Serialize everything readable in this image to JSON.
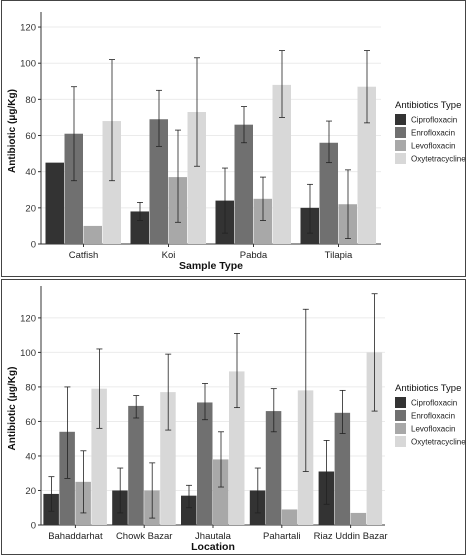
{
  "colors": {
    "Ciprofloxacin": "#333333",
    "Enrofloxacin": "#707070",
    "Levofloxacin": "#a8a8a8",
    "Oxytetracycline": "#d8d8d8",
    "grid": "#ebebeb",
    "errorbar": "#222222"
  },
  "chart_data": [
    {
      "type": "bar",
      "title": "",
      "xlabel": "Sample Type",
      "ylabel": "Antibiotic (μg/Kg)",
      "categories": [
        "Catfish",
        "Koi",
        "Pabda",
        "Tilapia"
      ],
      "ylim": [
        0,
        125
      ],
      "yticks": [
        0,
        20,
        40,
        60,
        80,
        100,
        120
      ],
      "grid": true,
      "legend": {
        "title": "Antibiotics Type",
        "position": "right"
      },
      "series": [
        {
          "name": "Ciprofloxacin",
          "values": [
            45,
            18,
            24,
            20
          ],
          "err_low": [
            null,
            13,
            6,
            6
          ],
          "err_high": [
            null,
            23,
            42,
            33
          ]
        },
        {
          "name": "Enrofloxacin",
          "values": [
            61,
            69,
            66,
            56
          ],
          "err_low": [
            35,
            54,
            56,
            45
          ],
          "err_high": [
            87,
            85,
            76,
            68
          ]
        },
        {
          "name": "Levofloxacin",
          "values": [
            10,
            37,
            25,
            22
          ],
          "err_low": [
            null,
            12,
            13,
            3
          ],
          "err_high": [
            null,
            63,
            37,
            41
          ]
        },
        {
          "name": "Oxytetracycline",
          "values": [
            68,
            73,
            88,
            87
          ],
          "err_low": [
            35,
            43,
            70,
            67
          ],
          "err_high": [
            102,
            103,
            107,
            107
          ]
        }
      ]
    },
    {
      "type": "bar",
      "title": "",
      "xlabel": "Location",
      "ylabel": "Antibiotic (μg/Kg)",
      "categories": [
        "Bahaddarhat",
        "Chowk Bazar",
        "Jhautala",
        "Pahartali",
        "Riaz Uddin Bazar"
      ],
      "ylim": [
        0,
        135
      ],
      "yticks": [
        0,
        20,
        40,
        60,
        80,
        100,
        120
      ],
      "grid": true,
      "legend": {
        "title": "Antibiotics Type",
        "position": "right"
      },
      "series": [
        {
          "name": "Ciprofloxacin",
          "values": [
            18,
            20,
            17,
            20,
            31
          ],
          "err_low": [
            8,
            7,
            10,
            7,
            12
          ],
          "err_high": [
            28,
            33,
            23,
            33,
            49
          ]
        },
        {
          "name": "Enrofloxacin",
          "values": [
            54,
            69,
            71,
            66,
            65
          ],
          "err_low": [
            27,
            62,
            61,
            54,
            53
          ],
          "err_high": [
            80,
            75,
            82,
            79,
            78
          ]
        },
        {
          "name": "Levofloxacin",
          "values": [
            25,
            20,
            38,
            9,
            7
          ],
          "err_low": [
            7,
            4,
            22,
            null,
            null
          ],
          "err_high": [
            43,
            36,
            54,
            null,
            null
          ]
        },
        {
          "name": "Oxytetracycline",
          "values": [
            79,
            77,
            89,
            78,
            100
          ],
          "err_low": [
            56,
            55,
            68,
            31,
            66
          ],
          "err_high": [
            102,
            99,
            111,
            125,
            134
          ]
        }
      ]
    }
  ]
}
